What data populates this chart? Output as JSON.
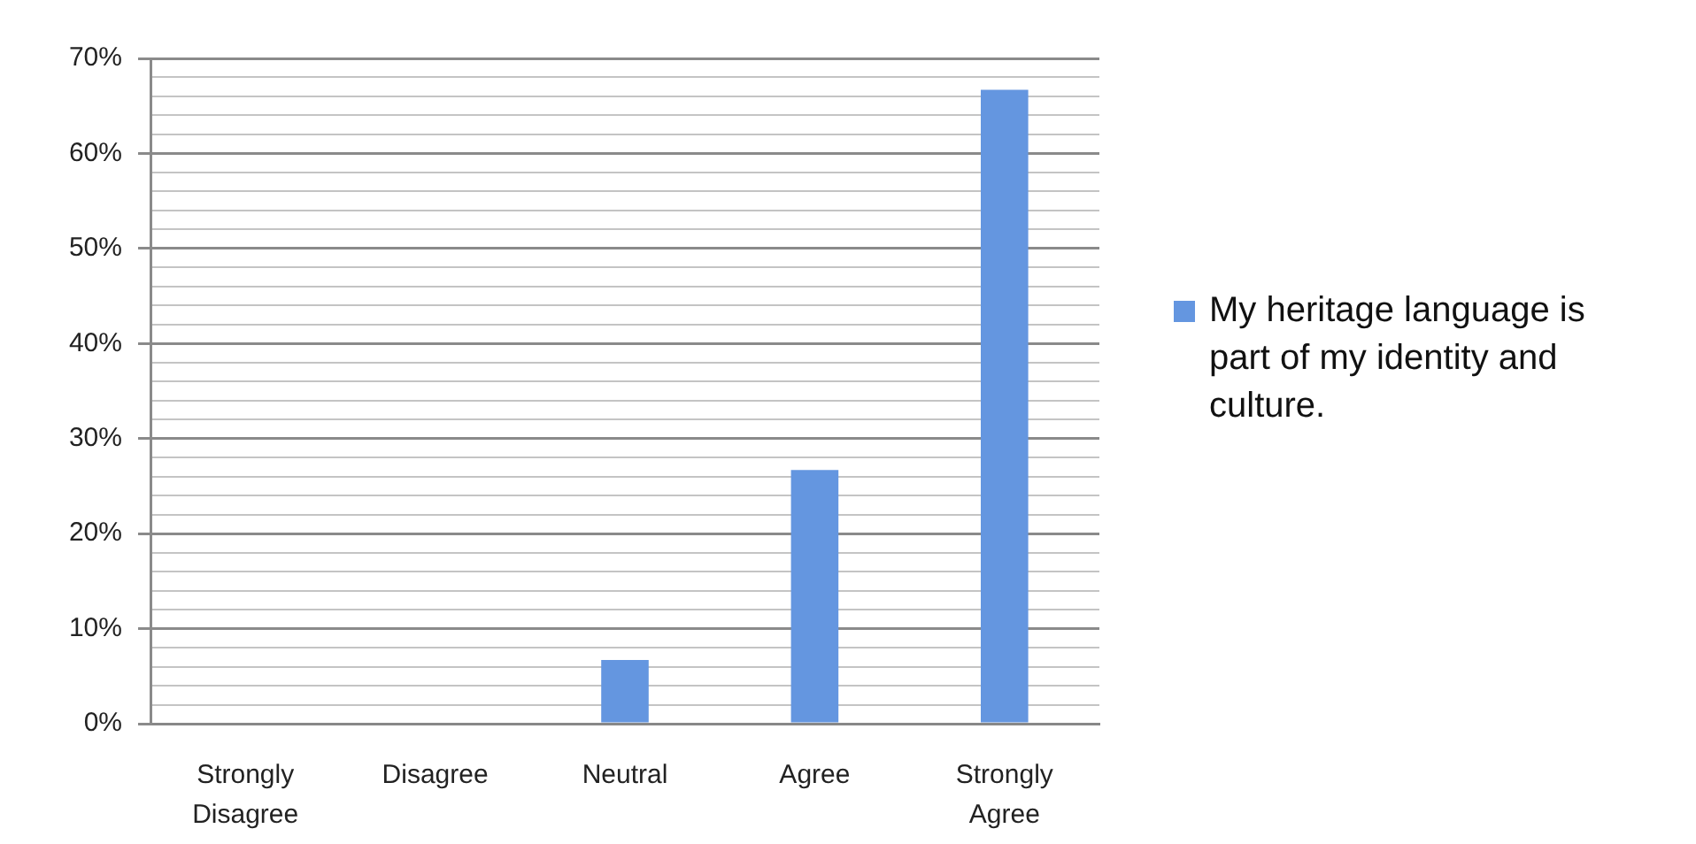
{
  "chart_data": {
    "type": "bar",
    "categories": [
      "Strongly Disagree",
      "Disagree",
      "Neutral",
      "Agree",
      "Strongly Agree"
    ],
    "series": [
      {
        "name": "My heritage language is part of my identity and culture.",
        "color": "#6496e0",
        "values": [
          0,
          0,
          6.7,
          26.7,
          66.7
        ]
      }
    ],
    "ylim": [
      0,
      70
    ],
    "yticks": [
      {
        "value": 0,
        "label": "0%"
      },
      {
        "value": 2,
        "label": null
      },
      {
        "value": 4,
        "label": null
      },
      {
        "value": 6,
        "label": null
      },
      {
        "value": 8,
        "label": null
      },
      {
        "value": 10,
        "label": "10%"
      },
      {
        "value": 12,
        "label": null
      },
      {
        "value": 14,
        "label": null
      },
      {
        "value": 16,
        "label": null
      },
      {
        "value": 18,
        "label": null
      },
      {
        "value": 20,
        "label": "20%"
      },
      {
        "value": 22,
        "label": null
      },
      {
        "value": 24,
        "label": null
      },
      {
        "value": 26,
        "label": null
      },
      {
        "value": 28,
        "label": null
      },
      {
        "value": 30,
        "label": "30%"
      },
      {
        "value": 32,
        "label": null
      },
      {
        "value": 34,
        "label": null
      },
      {
        "value": 36,
        "label": null
      },
      {
        "value": 38,
        "label": null
      },
      {
        "value": 40,
        "label": "40%"
      },
      {
        "value": 42,
        "label": null
      },
      {
        "value": 44,
        "label": null
      },
      {
        "value": 46,
        "label": null
      },
      {
        "value": 48,
        "label": null
      },
      {
        "value": 50,
        "label": "50%"
      },
      {
        "value": 52,
        "label": null
      },
      {
        "value": 54,
        "label": null
      },
      {
        "value": 56,
        "label": null
      },
      {
        "value": 58,
        "label": null
      },
      {
        "value": 60,
        "label": "60%"
      },
      {
        "value": 62,
        "label": null
      },
      {
        "value": 64,
        "label": null
      },
      {
        "value": 66,
        "label": null
      },
      {
        "value": 68,
        "label": null
      },
      {
        "value": 70,
        "label": "70%"
      }
    ],
    "grid": true,
    "legend": "right"
  }
}
